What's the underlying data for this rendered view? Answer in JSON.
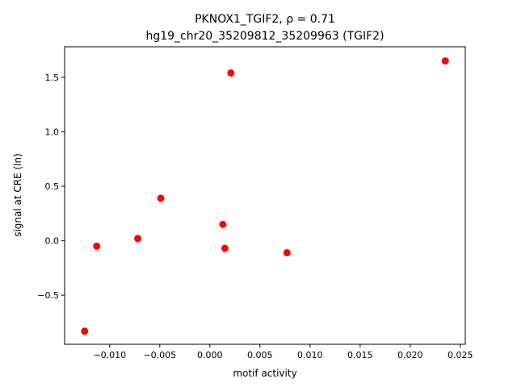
{
  "chart_data": {
    "type": "scatter",
    "title_line1": "PKNOX1_TGIF2, ρ = 0.71",
    "title_line2": "hg19_chr20_35209812_35209963 (TGIF2)",
    "xlabel": "motif activity",
    "ylabel": "signal at CRE (ln)",
    "xlim": [
      -0.0145,
      0.0255
    ],
    "ylim": [
      -0.95,
      1.78
    ],
    "xticks": [
      {
        "value": -0.01,
        "label": "−0.010"
      },
      {
        "value": -0.005,
        "label": "−0.005"
      },
      {
        "value": 0.0,
        "label": "0.000"
      },
      {
        "value": 0.005,
        "label": "0.005"
      },
      {
        "value": 0.01,
        "label": "0.010"
      },
      {
        "value": 0.015,
        "label": "0.015"
      },
      {
        "value": 0.02,
        "label": "0.020"
      },
      {
        "value": 0.025,
        "label": "0.025"
      }
    ],
    "yticks": [
      {
        "value": -0.5,
        "label": "−0.5"
      },
      {
        "value": 0.0,
        "label": "0.0"
      },
      {
        "value": 0.5,
        "label": "0.5"
      },
      {
        "value": 1.0,
        "label": "1.0"
      },
      {
        "value": 1.5,
        "label": "1.5"
      }
    ],
    "point_color": "#ff0000",
    "points": [
      {
        "x": -0.0125,
        "y": -0.83
      },
      {
        "x": -0.0113,
        "y": -0.05
      },
      {
        "x": -0.0072,
        "y": 0.02
      },
      {
        "x": -0.0049,
        "y": 0.39
      },
      {
        "x": 0.0013,
        "y": 0.15
      },
      {
        "x": 0.0015,
        "y": -0.07
      },
      {
        "x": 0.0021,
        "y": 1.54
      },
      {
        "x": 0.0077,
        "y": -0.11
      },
      {
        "x": 0.0235,
        "y": 1.65
      }
    ],
    "grid": false,
    "legend": "none"
  }
}
